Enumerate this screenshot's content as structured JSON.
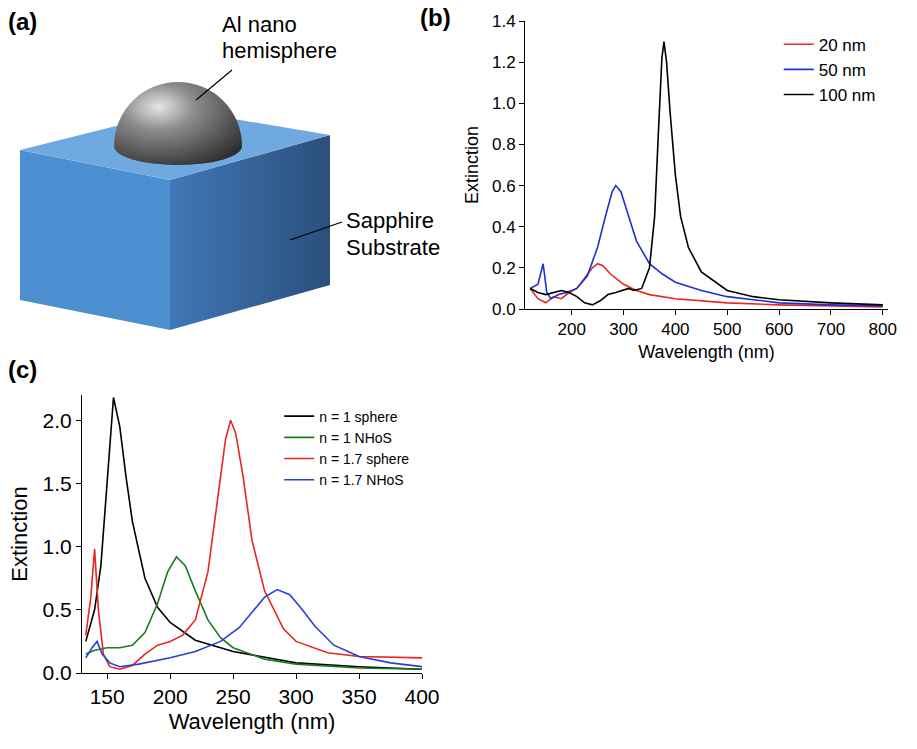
{
  "diagram": {
    "label": "(a)",
    "hemisphere_label": [
      "Al  nano",
      "hemisphere"
    ],
    "substrate_label": [
      "Sapphire",
      "Substrate"
    ]
  },
  "chart_data": [
    {
      "label": "(b)",
      "type": "line",
      "x_label": "Wavelength (nm)",
      "y_label": "Extinction",
      "xlim": [
        110,
        810
      ],
      "xticks": [
        200,
        300,
        400,
        500,
        600,
        700,
        800
      ],
      "ylim": [
        0,
        1.4
      ],
      "yticks": [
        {
          "value": 0,
          "label": "0.0"
        },
        0.2,
        0.4,
        0.6,
        0.8,
        {
          "value": 1,
          "label": "1.0"
        },
        1.2,
        1.4
      ],
      "legend": "top right",
      "grid": false,
      "series": [
        {
          "name": "20 nm",
          "color": "#e8271f",
          "x": [
            120,
            135,
            150,
            165,
            180,
            195,
            210,
            225,
            240,
            250,
            260,
            275,
            300,
            325,
            350,
            400,
            450,
            500,
            600,
            700,
            800
          ],
          "values": [
            0.1,
            0.05,
            0.03,
            0.06,
            0.05,
            0.08,
            0.1,
            0.15,
            0.2,
            0.22,
            0.21,
            0.17,
            0.12,
            0.09,
            0.07,
            0.05,
            0.04,
            0.03,
            0.02,
            0.015,
            0.01
          ]
        },
        {
          "name": "50 nm",
          "color": "#1f2fd6",
          "x": [
            120,
            135,
            145,
            152,
            160,
            175,
            190,
            210,
            230,
            250,
            265,
            278,
            285,
            295,
            310,
            325,
            350,
            375,
            400,
            450,
            500,
            600,
            700,
            800
          ],
          "values": [
            0.1,
            0.12,
            0.22,
            0.08,
            0.05,
            0.07,
            0.08,
            0.1,
            0.16,
            0.3,
            0.45,
            0.57,
            0.6,
            0.57,
            0.45,
            0.33,
            0.22,
            0.17,
            0.13,
            0.09,
            0.06,
            0.03,
            0.02,
            0.015
          ]
        },
        {
          "name": "100 nm",
          "color": "#000000",
          "x": [
            120,
            135,
            150,
            165,
            180,
            195,
            210,
            225,
            240,
            255,
            270,
            285,
            300,
            310,
            320,
            335,
            350,
            360,
            368,
            374,
            378,
            383,
            390,
            400,
            410,
            425,
            450,
            500,
            550,
            600,
            700,
            800
          ],
          "values": [
            0.1,
            0.08,
            0.07,
            0.08,
            0.09,
            0.08,
            0.06,
            0.03,
            0.02,
            0.04,
            0.07,
            0.08,
            0.09,
            0.1,
            0.09,
            0.1,
            0.2,
            0.45,
            0.9,
            1.22,
            1.3,
            1.2,
            0.95,
            0.65,
            0.45,
            0.3,
            0.18,
            0.09,
            0.06,
            0.045,
            0.03,
            0.02
          ]
        }
      ]
    },
    {
      "label": "(c)",
      "type": "line",
      "x_label": "Wavelength (nm)",
      "y_label": "Extinction",
      "xlim": [
        130,
        400
      ],
      "xticks": [
        150,
        200,
        250,
        300,
        350,
        400
      ],
      "ylim": [
        0,
        2.2
      ],
      "yticks": [
        {
          "value": 0,
          "label": "0.0"
        },
        0.5,
        {
          "value": 1,
          "label": "1.0"
        },
        1.5,
        {
          "value": 2,
          "label": "2.0"
        }
      ],
      "legend": "top right",
      "grid": false,
      "series": [
        {
          "name": "n = 1 sphere",
          "color": "#000000",
          "x": [
            133,
            140,
            145,
            150,
            155,
            160,
            165,
            170,
            180,
            190,
            200,
            220,
            250,
            300,
            350,
            400
          ],
          "values": [
            0.25,
            0.5,
            0.85,
            1.5,
            2.18,
            1.95,
            1.55,
            1.2,
            0.75,
            0.52,
            0.4,
            0.26,
            0.17,
            0.08,
            0.05,
            0.03
          ]
        },
        {
          "name": "n = 1 NHoS",
          "color": "#1e7a1e",
          "x": [
            133,
            140,
            150,
            160,
            170,
            180,
            190,
            198,
            205,
            212,
            220,
            230,
            240,
            250,
            275,
            300,
            350,
            400
          ],
          "values": [
            0.15,
            0.18,
            0.2,
            0.2,
            0.22,
            0.32,
            0.55,
            0.8,
            0.92,
            0.85,
            0.65,
            0.42,
            0.28,
            0.2,
            0.11,
            0.07,
            0.04,
            0.03
          ]
        },
        {
          "name": "n = 1.7 sphere",
          "color": "#e8271f",
          "x": [
            133,
            137,
            140,
            143,
            147,
            152,
            160,
            170,
            180,
            190,
            200,
            210,
            220,
            230,
            238,
            244,
            248,
            252,
            258,
            265,
            275,
            290,
            300,
            325,
            350,
            400
          ],
          "values": [
            0.3,
            0.6,
            0.98,
            0.5,
            0.15,
            0.05,
            0.03,
            0.06,
            0.15,
            0.22,
            0.25,
            0.3,
            0.42,
            0.8,
            1.4,
            1.85,
            2.0,
            1.9,
            1.55,
            1.05,
            0.65,
            0.35,
            0.25,
            0.16,
            0.13,
            0.12
          ]
        },
        {
          "name": "n = 1.7 NHoS",
          "color": "#2a3fd6",
          "x": [
            133,
            138,
            142,
            146,
            152,
            160,
            175,
            200,
            220,
            240,
            255,
            265,
            275,
            285,
            295,
            305,
            315,
            330,
            350,
            375,
            400
          ],
          "values": [
            0.12,
            0.2,
            0.25,
            0.15,
            0.08,
            0.05,
            0.07,
            0.12,
            0.17,
            0.25,
            0.36,
            0.48,
            0.6,
            0.66,
            0.62,
            0.5,
            0.37,
            0.22,
            0.13,
            0.08,
            0.05
          ]
        }
      ]
    }
  ]
}
